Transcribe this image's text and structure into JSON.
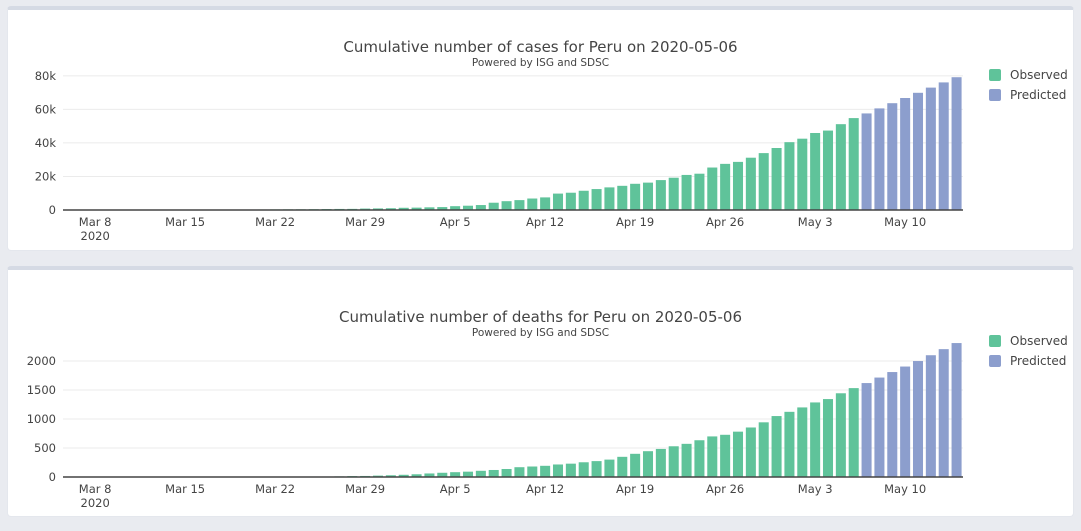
{
  "colors": {
    "observed": "#5fc39a",
    "predicted": "#8c9ecd",
    "axis_text": "#444444",
    "gridline": "#ebebeb",
    "axis_line": "#444444",
    "page_bg": "#e9ebf0",
    "card_bg": "#ffffff",
    "card_top": "#d5dae4",
    "card_border": "#e4e7ed"
  },
  "chart_data": [
    {
      "type": "bar",
      "title": "Cumulative number of cases for Peru on 2020-05-06",
      "subtitle": "Powered by ISG and SDSC",
      "legend": {
        "observed": "Observed",
        "predicted": "Predicted"
      },
      "legend_position": "right",
      "grid": true,
      "x_start_date": "2020-03-06",
      "x_end_date": "2020-05-14",
      "ylim": [
        0,
        83500
      ],
      "y_ticks": [
        {
          "value": 0,
          "label": "0"
        },
        {
          "value": 20000,
          "label": "20k"
        },
        {
          "value": 40000,
          "label": "40k"
        },
        {
          "value": 60000,
          "label": "60k"
        },
        {
          "value": 80000,
          "label": "80k"
        }
      ],
      "x_ticks": [
        {
          "day_index": 2,
          "label": "Mar 8",
          "sub_label": "2020"
        },
        {
          "day_index": 9,
          "label": "Mar 15"
        },
        {
          "day_index": 16,
          "label": "Mar 22"
        },
        {
          "day_index": 23,
          "label": "Mar 29"
        },
        {
          "day_index": 30,
          "label": "Apr 5"
        },
        {
          "day_index": 37,
          "label": "Apr 12"
        },
        {
          "day_index": 44,
          "label": "Apr 19"
        },
        {
          "day_index": 51,
          "label": "Apr 26"
        },
        {
          "day_index": 58,
          "label": "May 3"
        },
        {
          "day_index": 65,
          "label": "May 10"
        }
      ],
      "series": [
        {
          "name": "Observed",
          "values": [
            1,
            6,
            6,
            9,
            11,
            17,
            22,
            38,
            43,
            86,
            117,
            145,
            234,
            234,
            263,
            318,
            363,
            395,
            416,
            480,
            580,
            635,
            671,
            852,
            950,
            1065,
            1323,
            1414,
            1595,
            1746,
            2281,
            2561,
            2954,
            4342,
            5256,
            5897,
            6848,
            7519,
            9784,
            10303,
            11475,
            12491,
            13489,
            14420,
            15628,
            16325,
            17837,
            19250,
            20914,
            21648,
            25331,
            27517,
            28699,
            31190,
            33931,
            36976,
            40459,
            42534,
            45928,
            47372,
            51189,
            54817
          ]
        },
        {
          "name": "Predicted",
          "values": [
            57600,
            60600,
            63700,
            66800,
            69900,
            73000,
            76100,
            79200
          ]
        }
      ]
    },
    {
      "type": "bar",
      "title": "Cumulative number of deaths for Peru on 2020-05-06",
      "subtitle": "Powered by ISG and SDSC",
      "legend": {
        "observed": "Observed",
        "predicted": "Predicted"
      },
      "legend_position": "right",
      "grid": true,
      "x_start_date": "2020-03-06",
      "x_end_date": "2020-05-14",
      "ylim": [
        0,
        2380
      ],
      "y_ticks": [
        {
          "value": 0,
          "label": "0"
        },
        {
          "value": 500,
          "label": "500"
        },
        {
          "value": 1000,
          "label": "1000"
        },
        {
          "value": 1500,
          "label": "1500"
        },
        {
          "value": 2000,
          "label": "2000"
        }
      ],
      "x_ticks": [
        {
          "day_index": 2,
          "label": "Mar 8",
          "sub_label": "2020"
        },
        {
          "day_index": 9,
          "label": "Mar 15"
        },
        {
          "day_index": 16,
          "label": "Mar 22"
        },
        {
          "day_index": 23,
          "label": "Mar 29"
        },
        {
          "day_index": 30,
          "label": "Apr 5"
        },
        {
          "day_index": 37,
          "label": "Apr 12"
        },
        {
          "day_index": 44,
          "label": "Apr 19"
        },
        {
          "day_index": 51,
          "label": "Apr 26"
        },
        {
          "day_index": 58,
          "label": "May 3"
        },
        {
          "day_index": 65,
          "label": "May 10"
        }
      ],
      "series": [
        {
          "name": "Observed",
          "values": [
            0,
            0,
            0,
            0,
            0,
            0,
            0,
            0,
            0,
            0,
            0,
            0,
            0,
            3,
            3,
            5,
            5,
            5,
            7,
            9,
            9,
            11,
            16,
            18,
            24,
            30,
            38,
            47,
            61,
            73,
            83,
            92,
            107,
            121,
            138,
            169,
            181,
            193,
            216,
            230,
            254,
            274,
            300,
            348,
            400,
            445,
            484,
            530,
            572,
            634,
            700,
            728,
            782,
            854,
            943,
            1051,
            1124,
            1200,
            1286,
            1344,
            1444,
            1533
          ]
        },
        {
          "name": "Predicted",
          "values": [
            1620,
            1715,
            1810,
            1905,
            2000,
            2100,
            2205,
            2310
          ]
        }
      ]
    }
  ]
}
